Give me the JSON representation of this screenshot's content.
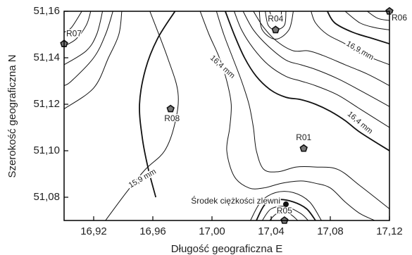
{
  "chart_data": {
    "type": "contour",
    "xlabel": "Długość geograficzna E",
    "ylabel": "Szerokość geograficzna N",
    "xlim": [
      16.9,
      17.12
    ],
    "ylim": [
      51.07,
      51.16
    ],
    "x_ticks": [
      "16,92",
      "16,96",
      "17,00",
      "17,04",
      "17,08",
      "17,12"
    ],
    "x_tick_values": [
      16.92,
      16.96,
      17.0,
      17.04,
      17.08,
      17.12
    ],
    "y_ticks": [
      "51,08",
      "51,10",
      "51,12",
      "51,14",
      "51,16"
    ],
    "y_tick_values": [
      51.08,
      51.1,
      51.12,
      51.14,
      51.16
    ],
    "grid": false,
    "stations": [
      {
        "name": "R01",
        "lon": 17.062,
        "lat": 51.101
      },
      {
        "name": "R04",
        "lon": 17.043,
        "lat": 51.152
      },
      {
        "name": "R05",
        "lon": 17.049,
        "lat": 51.07
      },
      {
        "name": "R06",
        "lon": 17.12,
        "lat": 51.16
      },
      {
        "name": "R07",
        "lon": 16.9,
        "lat": 51.146
      },
      {
        "name": "R08",
        "lon": 16.972,
        "lat": 51.118
      }
    ],
    "centroid": {
      "label": "Środek ciężkości zlewni",
      "lon": 17.05,
      "lat": 51.077
    },
    "contour_labels": [
      {
        "text": "16,9 mm",
        "lon": 17.1,
        "lat": 51.143
      },
      {
        "text": "16,4 mm",
        "lon": 17.007,
        "lat": 51.136
      },
      {
        "text": "16,4 mm",
        "lon": 17.1,
        "lat": 51.112
      },
      {
        "text": "15,9 mm",
        "lon": 16.953,
        "lat": 51.088
      }
    ],
    "contour_lines": [
      {
        "lw": 1,
        "pts": [
          [
            16.939,
            51.16
          ],
          [
            16.937,
            51.15
          ],
          [
            16.93,
            51.14
          ],
          [
            16.92,
            51.127
          ],
          [
            16.9,
            51.118
          ]
        ]
      },
      {
        "lw": 1,
        "pts": [
          [
            16.933,
            51.16
          ],
          [
            16.928,
            51.15
          ],
          [
            16.92,
            51.14
          ],
          [
            16.905,
            51.13
          ],
          [
            16.9,
            51.128
          ]
        ]
      },
      {
        "lw": 1,
        "pts": [
          [
            16.926,
            51.16
          ],
          [
            16.922,
            51.15
          ],
          [
            16.915,
            51.143
          ],
          [
            16.9,
            51.137
          ]
        ]
      },
      {
        "lw": 1,
        "pts": [
          [
            16.918,
            51.16
          ],
          [
            16.915,
            51.154
          ],
          [
            16.908,
            51.148
          ],
          [
            16.9,
            51.145
          ]
        ]
      },
      {
        "lw": 1,
        "pts": [
          [
            16.912,
            51.16
          ],
          [
            16.905,
            51.153
          ],
          [
            16.9,
            51.151
          ]
        ]
      },
      {
        "lw": 1.8,
        "pts": [
          [
            16.975,
            51.16
          ],
          [
            16.963,
            51.148
          ],
          [
            16.955,
            51.135
          ],
          [
            16.951,
            51.12
          ],
          [
            16.953,
            51.105
          ],
          [
            16.957,
            51.092
          ],
          [
            16.962,
            51.08
          ]
        ]
      },
      {
        "lw": 1,
        "pts": [
          [
            16.928,
            51.07
          ],
          [
            16.942,
            51.082
          ],
          [
            16.955,
            51.092
          ],
          [
            16.968,
            51.1
          ],
          [
            16.975,
            51.112
          ],
          [
            16.977,
            51.125
          ],
          [
            16.97,
            51.14
          ],
          [
            16.958,
            51.16
          ]
        ]
      },
      {
        "lw": 1,
        "pts": [
          [
            16.992,
            51.16
          ],
          [
            16.998,
            51.15
          ],
          [
            17.005,
            51.14
          ],
          [
            17.01,
            51.13
          ],
          [
            17.013,
            51.12
          ],
          [
            17.012,
            51.11
          ],
          [
            17.01,
            51.1
          ],
          [
            17.015,
            51.089
          ],
          [
            17.025,
            51.084
          ],
          [
            17.035,
            51.084
          ],
          [
            17.047,
            51.086
          ],
          [
            17.06,
            51.087
          ],
          [
            17.07,
            51.086
          ],
          [
            17.08,
            51.084
          ],
          [
            17.09,
            51.078
          ],
          [
            17.1,
            51.073
          ],
          [
            17.11,
            51.07
          ]
        ]
      },
      {
        "lw": 1,
        "pts": [
          [
            17.003,
            51.16
          ],
          [
            17.008,
            51.15
          ],
          [
            17.014,
            51.14
          ],
          [
            17.02,
            51.13
          ],
          [
            17.025,
            51.12
          ],
          [
            17.028,
            51.11
          ],
          [
            17.03,
            51.1
          ],
          [
            17.035,
            51.092
          ],
          [
            17.045,
            51.091
          ],
          [
            17.057,
            51.093
          ],
          [
            17.07,
            51.093
          ],
          [
            17.085,
            51.092
          ],
          [
            17.1,
            51.085
          ],
          [
            17.12,
            51.075
          ]
        ]
      },
      {
        "lw": 1.8,
        "pts": [
          [
            17.009,
            51.16
          ],
          [
            17.015,
            51.15
          ],
          [
            17.022,
            51.14
          ],
          [
            17.03,
            51.132
          ],
          [
            17.04,
            51.126
          ],
          [
            17.05,
            51.123
          ],
          [
            17.06,
            51.122
          ],
          [
            17.07,
            51.12
          ],
          [
            17.08,
            51.117
          ],
          [
            17.09,
            51.113
          ],
          [
            17.1,
            51.108
          ],
          [
            17.12,
            51.1
          ]
        ]
      },
      {
        "lw": 1,
        "pts": [
          [
            17.015,
            51.16
          ],
          [
            17.02,
            51.152
          ],
          [
            17.028,
            51.144
          ],
          [
            17.038,
            51.137
          ],
          [
            17.05,
            51.132
          ],
          [
            17.06,
            51.13
          ],
          [
            17.07,
            51.128
          ],
          [
            17.085,
            51.124
          ],
          [
            17.1,
            51.118
          ],
          [
            17.12,
            51.11
          ]
        ]
      },
      {
        "lw": 1,
        "pts": [
          [
            17.021,
            51.16
          ],
          [
            17.028,
            51.152
          ],
          [
            17.038,
            51.145
          ],
          [
            17.05,
            51.139
          ],
          [
            17.06,
            51.137
          ],
          [
            17.07,
            51.135
          ],
          [
            17.085,
            51.131
          ],
          [
            17.1,
            51.126
          ],
          [
            17.12,
            51.119
          ]
        ]
      },
      {
        "lw": 1,
        "pts": [
          [
            17.028,
            51.16
          ],
          [
            17.035,
            51.153
          ],
          [
            17.044,
            51.147
          ],
          [
            17.055,
            51.143
          ],
          [
            17.065,
            51.143
          ],
          [
            17.075,
            51.141
          ],
          [
            17.09,
            51.137
          ],
          [
            17.105,
            51.133
          ],
          [
            17.12,
            51.128
          ]
        ]
      },
      {
        "lw": 1,
        "pts": [
          [
            17.067,
            51.16
          ],
          [
            17.07,
            51.155
          ],
          [
            17.078,
            51.15
          ],
          [
            17.09,
            51.146
          ],
          [
            17.1,
            51.142
          ],
          [
            17.12,
            51.137
          ]
        ]
      },
      {
        "lw": 1.8,
        "pts": [
          [
            17.078,
            51.16
          ],
          [
            17.083,
            51.155
          ],
          [
            17.095,
            51.151
          ],
          [
            17.11,
            51.148
          ],
          [
            17.12,
            51.146
          ]
        ]
      },
      {
        "lw": 1,
        "pts": [
          [
            17.09,
            51.16
          ],
          [
            17.1,
            51.155
          ],
          [
            17.11,
            51.153
          ],
          [
            17.12,
            51.152
          ]
        ]
      },
      {
        "lw": 1,
        "pts": [
          [
            17.105,
            51.16
          ],
          [
            17.112,
            51.157
          ],
          [
            17.12,
            51.156
          ]
        ]
      },
      {
        "lw": 1,
        "pts": [
          [
            17.032,
            51.16
          ],
          [
            17.034,
            51.152
          ],
          [
            17.043,
            51.148
          ],
          [
            17.052,
            51.152
          ],
          [
            17.055,
            51.16
          ]
        ]
      },
      {
        "lw": 1,
        "pts": [
          [
            17.036,
            51.16
          ],
          [
            17.038,
            51.154
          ],
          [
            17.043,
            51.152
          ],
          [
            17.049,
            51.154
          ],
          [
            17.05,
            51.16
          ]
        ]
      },
      {
        "lw": 1,
        "pts": [
          [
            17.039,
            51.16
          ],
          [
            17.041,
            51.157
          ],
          [
            17.046,
            51.157
          ],
          [
            17.047,
            51.16
          ]
        ]
      },
      {
        "lw": 1,
        "pts": [
          [
            17.026,
            51.07
          ],
          [
            17.033,
            51.078
          ],
          [
            17.043,
            51.082
          ],
          [
            17.055,
            51.082
          ],
          [
            17.066,
            51.078
          ],
          [
            17.074,
            51.07
          ]
        ]
      },
      {
        "lw": 1.8,
        "pts": [
          [
            17.03,
            51.07
          ],
          [
            17.036,
            51.077
          ],
          [
            17.045,
            51.079
          ],
          [
            17.055,
            51.078
          ],
          [
            17.064,
            51.075
          ],
          [
            17.07,
            51.07
          ]
        ]
      },
      {
        "lw": 1,
        "pts": [
          [
            17.034,
            51.07
          ],
          [
            17.04,
            51.075
          ],
          [
            17.05,
            51.076
          ],
          [
            17.06,
            51.073
          ],
          [
            17.065,
            51.07
          ]
        ]
      },
      {
        "lw": 1,
        "pts": [
          [
            17.039,
            51.07
          ],
          [
            17.044,
            51.073
          ],
          [
            17.052,
            51.073
          ],
          [
            17.058,
            51.07
          ]
        ]
      }
    ]
  }
}
